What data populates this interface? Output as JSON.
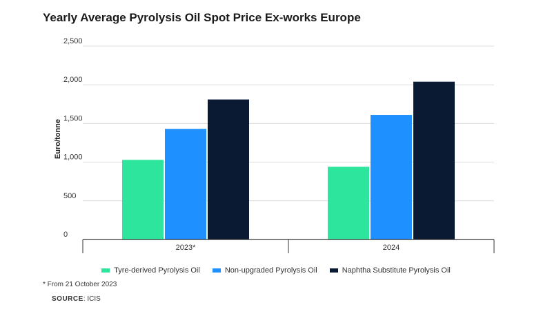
{
  "chart_data": {
    "type": "bar",
    "title": "Yearly Average Pyrolysis Oil Spot Price Ex-works Europe",
    "ylabel": "Euro/tonne",
    "xlabel": "",
    "categories": [
      "2023*",
      "2024"
    ],
    "ylim": [
      0,
      2500
    ],
    "yticks": [
      "0",
      "500",
      "1,000",
      "1,500",
      "2,000",
      "2,500"
    ],
    "ytick_values": [
      0,
      500,
      1000,
      1500,
      2000,
      2500
    ],
    "grid": true,
    "legend_position": "bottom",
    "series": [
      {
        "name": "Tyre-derived Pyrolysis Oil",
        "color": "#2ee59d",
        "values": [
          1030,
          940
        ]
      },
      {
        "name": "Non-upgraded Pyrolysis Oil",
        "color": "#1e90ff",
        "values": [
          1430,
          1610
        ]
      },
      {
        "name": "Naphtha Substitute Pyrolysis Oil",
        "color": "#0b1a33",
        "values": [
          1810,
          2040
        ]
      }
    ]
  },
  "footnote": "* From 21 October 2023",
  "source": {
    "label": "SOURCE",
    "value": ": ICIS"
  }
}
